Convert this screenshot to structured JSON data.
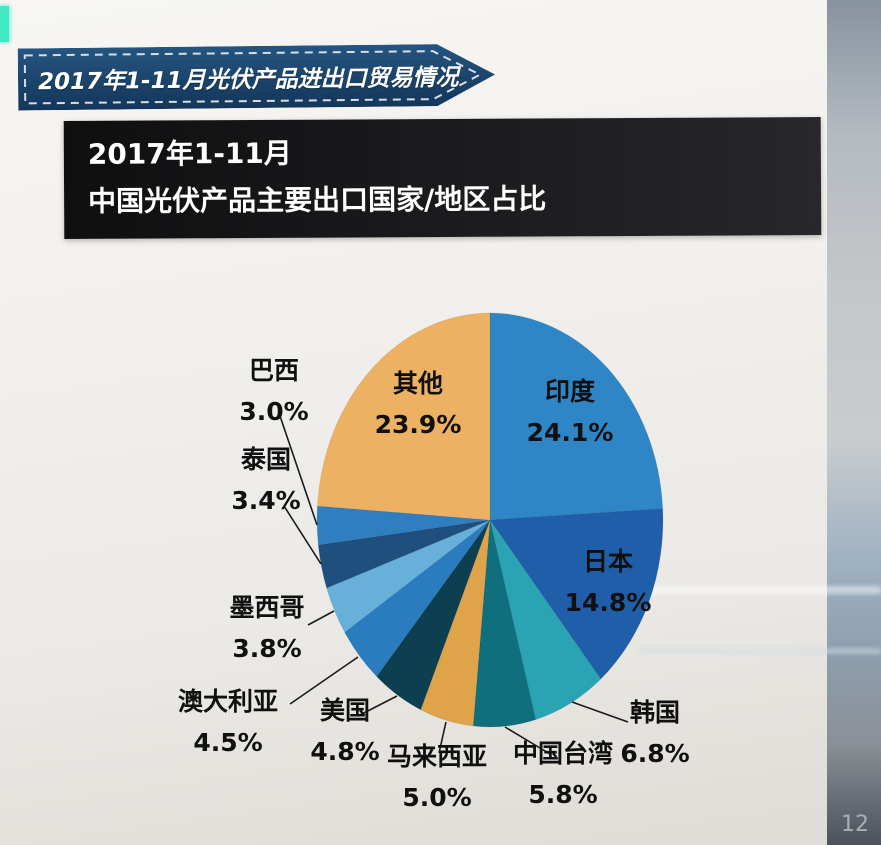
{
  "banner": {
    "title": "2017年1-11月光伏产品进出口贸易情况"
  },
  "header": {
    "line1": "2017年1-11月",
    "line2": "中国光伏产品主要出口国家/地区占比"
  },
  "page": {
    "number": "12"
  },
  "colors": {
    "ribbon_dark": "#14365a",
    "ribbon_light": "#245581",
    "header_bg": "#161618"
  },
  "chart_data": {
    "type": "pie",
    "title": "2017年1-11月中国光伏产品主要出口国家/地区占比",
    "unit": "%",
    "start_angle_deg": 0,
    "direction": "clockwise",
    "legend": "none",
    "label_style": "callout",
    "slices": [
      {
        "label": "印度",
        "value": 24.1,
        "pct": "24.1%",
        "color": "#2e86c6",
        "label_placement": "inside"
      },
      {
        "label": "日本",
        "value": 14.8,
        "pct": "14.8%",
        "color": "#1f5fa9",
        "label_placement": "inside"
      },
      {
        "label": "韩国",
        "value": 6.8,
        "pct": "6.8%",
        "color": "#2aa4b4",
        "label_placement": "outside"
      },
      {
        "label": "中国台湾",
        "value": 5.8,
        "pct": "5.8%",
        "color": "#0f6f7c",
        "label_placement": "outside"
      },
      {
        "label": "马来西亚",
        "value": 5.0,
        "pct": "5.0%",
        "color": "#dfa44a",
        "label_placement": "outside"
      },
      {
        "label": "美国",
        "value": 4.8,
        "pct": "4.8%",
        "color": "#0d3f51",
        "label_placement": "outside"
      },
      {
        "label": "澳大利亚",
        "value": 4.5,
        "pct": "4.5%",
        "color": "#2b7cbf",
        "label_placement": "outside"
      },
      {
        "label": "墨西哥",
        "value": 3.8,
        "pct": "3.8%",
        "color": "#66b0d9",
        "label_placement": "outside"
      },
      {
        "label": "泰国",
        "value": 3.4,
        "pct": "3.4%",
        "color": "#1e4f7d",
        "label_placement": "outside"
      },
      {
        "label": "巴西",
        "value": 3.0,
        "pct": "3.0%",
        "color": "#2f7ec0",
        "label_placement": "outside"
      },
      {
        "label": "其他",
        "value": 23.9,
        "pct": "23.9%",
        "color": "#edb163",
        "label_placement": "inside"
      }
    ]
  }
}
